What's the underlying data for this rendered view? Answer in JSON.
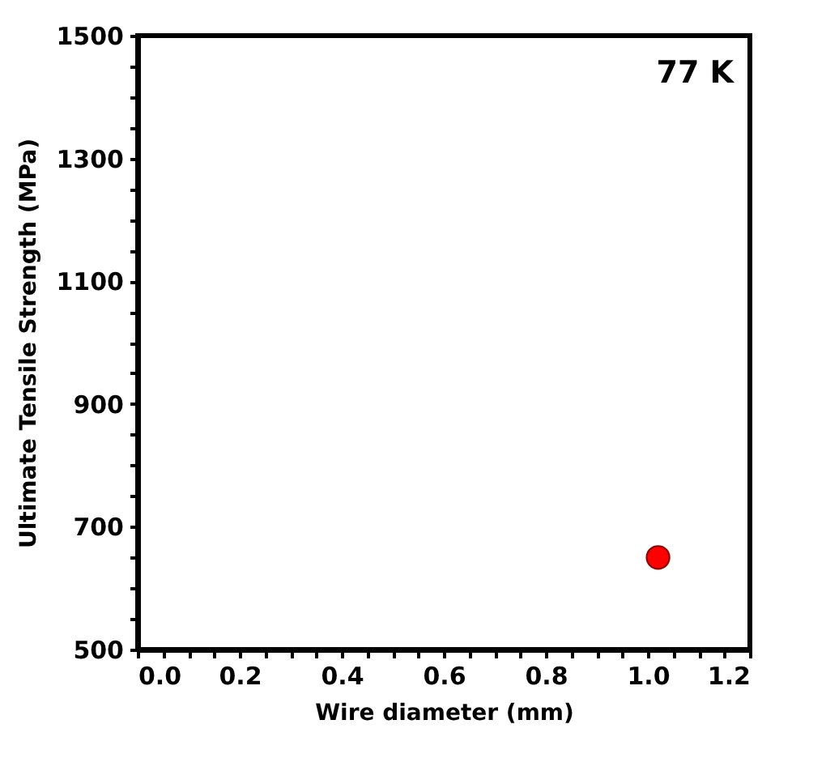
{
  "chart_data": {
    "type": "scatter",
    "xlabel": "Wire diameter (mm)",
    "ylabel": "Ultimate Tensile Strength (MPa)",
    "annotations": [
      "77 K"
    ],
    "x": [
      1.02
    ],
    "series": [
      {
        "color": "#ff0000",
        "values": [
          650
        ]
      }
    ],
    "marker": "circle",
    "grid": false,
    "xlim": [
      0,
      1.2
    ],
    "ylim": [
      500,
      1500
    ],
    "xticks": [
      {
        "value": 0,
        "label": "0.0"
      },
      {
        "value": 0.05,
        "label": null
      },
      {
        "value": 0.1,
        "label": null
      },
      {
        "value": 0.15,
        "label": null
      },
      {
        "value": 0.2,
        "label": "0.2"
      },
      {
        "value": 0.25,
        "label": null
      },
      {
        "value": 0.3,
        "label": null
      },
      {
        "value": 0.35,
        "label": null
      },
      {
        "value": 0.4,
        "label": "0.4"
      },
      {
        "value": 0.45,
        "label": null
      },
      {
        "value": 0.5,
        "label": null
      },
      {
        "value": 0.55,
        "label": null
      },
      {
        "value": 0.6,
        "label": "0.6"
      },
      {
        "value": 0.65,
        "label": null
      },
      {
        "value": 0.7,
        "label": null
      },
      {
        "value": 0.75,
        "label": null
      },
      {
        "value": 0.8,
        "label": "0.8"
      },
      {
        "value": 0.85,
        "label": null
      },
      {
        "value": 0.9,
        "label": null
      },
      {
        "value": 0.95,
        "label": null
      },
      {
        "value": 1,
        "label": "1.0"
      },
      {
        "value": 1.05,
        "label": null
      },
      {
        "value": 1.1,
        "label": null
      },
      {
        "value": 1.15,
        "label": null
      },
      {
        "value": 1.2,
        "label": "1.2"
      }
    ],
    "yticks": [
      500,
      {
        "value": 550,
        "label": null
      },
      {
        "value": 600,
        "label": null
      },
      {
        "value": 650,
        "label": null
      },
      700,
      {
        "value": 750,
        "label": null
      },
      {
        "value": 800,
        "label": null
      },
      {
        "value": 850,
        "label": null
      },
      900,
      {
        "value": 950,
        "label": null
      },
      {
        "value": 1000,
        "label": null
      },
      {
        "value": 1050,
        "label": null
      },
      1100,
      {
        "value": 1150,
        "label": null
      },
      {
        "value": 1200,
        "label": null
      },
      {
        "value": 1250,
        "label": null
      },
      1300,
      {
        "value": 1350,
        "label": null
      },
      {
        "value": 1400,
        "label": null
      },
      {
        "value": 1450,
        "label": null
      },
      1500
    ]
  }
}
